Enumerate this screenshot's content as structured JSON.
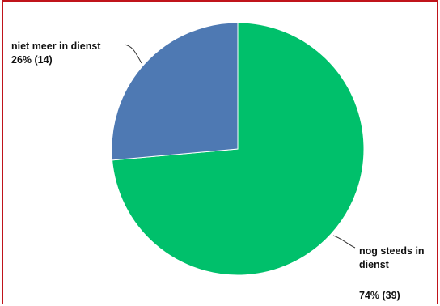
{
  "chart_data": {
    "type": "pie",
    "title": "",
    "slices": [
      {
        "label_lines": [
          "nog steeds in",
          "dienst"
        ],
        "value_text": "74% (39)",
        "count": 39,
        "percent": 74,
        "color": "#00c06b"
      },
      {
        "label_lines": [
          "niet meer in dienst"
        ],
        "value_text": "26% (14)",
        "count": 14,
        "percent": 26,
        "color": "#4e79b3"
      }
    ],
    "border_color": "#c0141b",
    "leader_line_color": "#333333"
  }
}
